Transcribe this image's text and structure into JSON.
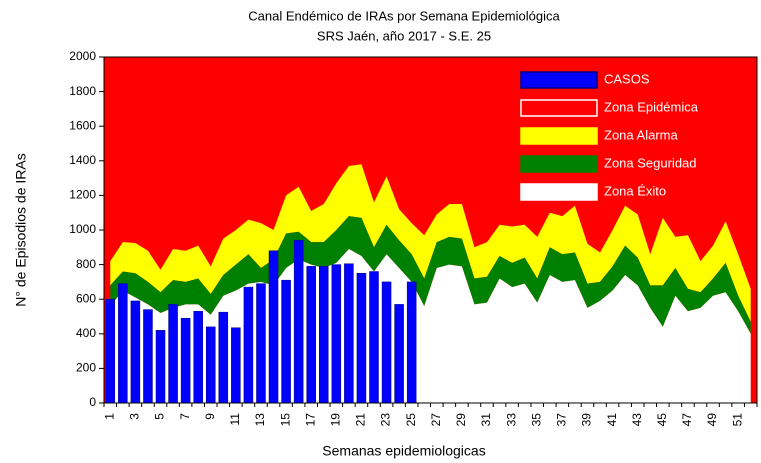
{
  "chart_data": {
    "type": "endemic-channel",
    "title": "Canal Endémico de IRAs por Semana Epidemiológica",
    "subtitle": "SRS Jaén, año 2017 - S.E. 25",
    "x_label": "Semanas epidemiologicas",
    "y_label": "N° de Episodios de IRAs",
    "categories": [
      "1",
      null,
      "3",
      null,
      "5",
      null,
      "7",
      null,
      "9",
      null,
      "11",
      null,
      "13",
      null,
      "15",
      null,
      "17",
      null,
      "19",
      null,
      "21",
      null,
      "23",
      null,
      "25",
      null,
      "27",
      null,
      "29",
      null,
      "31",
      null,
      "33",
      null,
      "35",
      null,
      "37",
      null,
      "39",
      null,
      "41",
      null,
      "43",
      null,
      "45",
      null,
      "47",
      null,
      "49",
      null,
      "51",
      null
    ],
    "ylim": [
      0,
      2000
    ],
    "yticks": [
      0,
      200,
      400,
      600,
      800,
      1000,
      1200,
      1400,
      1600,
      1800,
      2000
    ],
    "series": [
      {
        "name": "CASOS",
        "color": "#0000ff",
        "kind": "bar",
        "values": [
          600,
          690,
          590,
          540,
          420,
          570,
          490,
          530,
          440,
          525,
          435,
          670,
          690,
          880,
          710,
          940,
          790,
          790,
          800,
          805,
          750,
          760,
          700,
          570,
          700,
          null,
          null,
          null,
          null,
          null,
          null,
          null,
          null,
          null,
          null,
          null,
          null,
          null,
          null,
          null,
          null,
          null,
          null,
          null,
          null,
          null,
          null,
          null,
          null,
          null,
          null,
          null
        ]
      },
      {
        "name": "Zona Epidémica",
        "color": "#ff0000",
        "kind": "fill-to-top"
      },
      {
        "name": "Zona Alarma",
        "color": "#ffff00",
        "kind": "area",
        "values": [
          140,
          170,
          175,
          180,
          130,
          180,
          180,
          190,
          160,
          210,
          200,
          200,
          260,
          170,
          220,
          260,
          180,
          220,
          270,
          290,
          310,
          260,
          280,
          180,
          180,
          250,
          160,
          190,
          200,
          180,
          200,
          180,
          210,
          190,
          240,
          200,
          220,
          270,
          230,
          170,
          210,
          230,
          250,
          180,
          390,
          180,
          310,
          180,
          190,
          240,
          240,
          190
        ]
      },
      {
        "name": "Zona Seguridad",
        "color": "#008000",
        "kind": "area",
        "values": [
          120,
          110,
          140,
          130,
          120,
          160,
          130,
          150,
          120,
          120,
          150,
          170,
          80,
          150,
          200,
          160,
          130,
          150,
          190,
          190,
          220,
          140,
          170,
          160,
          160,
          160,
          150,
          160,
          160,
          150,
          150,
          130,
          140,
          150,
          140,
          160,
          160,
          160,
          140,
          110,
          140,
          170,
          160,
          130,
          240,
          160,
          130,
          90,
          100,
          170,
          90,
          70
        ]
      },
      {
        "name": "Zona Éxito",
        "color": "#ffffff",
        "kind": "area",
        "values": [
          560,
          650,
          610,
          570,
          520,
          550,
          570,
          570,
          510,
          620,
          650,
          690,
          700,
          680,
          780,
          830,
          800,
          780,
          810,
          890,
          850,
          760,
          860,
          780,
          700,
          560,
          780,
          800,
          790,
          570,
          580,
          720,
          670,
          690,
          580,
          740,
          700,
          710,
          550,
          590,
          650,
          740,
          680,
          550,
          440,
          620,
          530,
          550,
          620,
          640,
          530,
          400
        ]
      }
    ]
  }
}
